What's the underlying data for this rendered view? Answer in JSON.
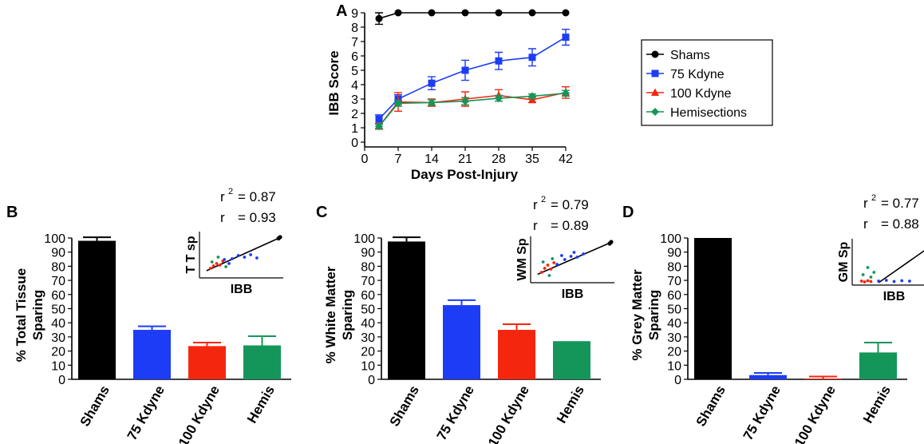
{
  "colors": {
    "shams": "#000000",
    "k75": "#1c3cf5",
    "k100": "#f5260e",
    "hemi": "#14965a"
  },
  "legend": {
    "entries": [
      {
        "label": "Shams",
        "marker": "circle",
        "color": "#000000"
      },
      {
        "label": "75 Kdyne",
        "marker": "square",
        "color": "#1c3cf5"
      },
      {
        "label": "100 Kdyne",
        "marker": "triangle",
        "color": "#f5260e"
      },
      {
        "label": "Hemisections",
        "marker": "diamond",
        "color": "#14965a"
      }
    ]
  },
  "chart_data": [
    {
      "id": "A",
      "panel_label": "A",
      "type": "line",
      "title": "",
      "xlabel": "Days Post-Injury",
      "ylabel": "IBB Score",
      "x": [
        3,
        7,
        14,
        21,
        28,
        35,
        42
      ],
      "x_ticks": [
        "0",
        "7",
        "14",
        "21",
        "28",
        "35",
        "42"
      ],
      "xlim": [
        0,
        42
      ],
      "ylim": [
        0,
        9
      ],
      "y_ticks": [
        "0",
        "1",
        "2",
        "3",
        "4",
        "5",
        "6",
        "7",
        "8",
        "9"
      ],
      "series": [
        {
          "name": "Shams",
          "color": "#000000",
          "marker": "circle",
          "values": [
            8.6,
            9,
            9,
            9,
            9,
            9,
            9
          ],
          "errors": [
            0.4,
            0,
            0,
            0,
            0,
            0,
            0
          ]
        },
        {
          "name": "75 Kdyne",
          "color": "#1c3cf5",
          "marker": "square",
          "values": [
            1.6,
            3.0,
            4.1,
            5.0,
            5.65,
            5.9,
            7.3
          ],
          "errors": [
            0.3,
            0.3,
            0.45,
            0.7,
            0.6,
            0.6,
            0.55
          ]
        },
        {
          "name": "100 Kdyne",
          "color": "#f5260e",
          "marker": "triangle",
          "values": [
            1.1,
            2.8,
            2.75,
            3.0,
            3.25,
            2.95,
            3.45
          ],
          "errors": [
            0.2,
            0.65,
            0.25,
            0.5,
            0.4,
            0.2,
            0.4
          ]
        },
        {
          "name": "Hemisections",
          "color": "#14965a",
          "marker": "diamond",
          "values": [
            1.1,
            2.7,
            2.75,
            2.85,
            3.05,
            3.2,
            3.4
          ],
          "errors": [
            0.15,
            0.2,
            0.2,
            0.25,
            0.2,
            0.15,
            0.2
          ]
        }
      ]
    },
    {
      "id": "B",
      "panel_label": "B",
      "type": "bar",
      "title": "",
      "xlabel": "",
      "ylabel": "% Total Tissue Sparing",
      "ylabel_lines": [
        "% Total Tissue",
        "Sparing"
      ],
      "categories": [
        "Shams",
        "75 Kdyne",
        "100 Kdyne",
        "Hemis"
      ],
      "values": [
        98,
        35,
        23.5,
        24
      ],
      "errors": [
        2.5,
        2.5,
        2.5,
        6.5
      ],
      "colors": [
        "#000000",
        "#1c3cf5",
        "#f5260e",
        "#14965a"
      ],
      "ylim": [
        0,
        100
      ],
      "y_ticks": [
        "0",
        "10",
        "20",
        "30",
        "40",
        "50",
        "60",
        "70",
        "80",
        "90",
        "100"
      ],
      "inset": {
        "type": "scatter",
        "ylabel": "T T sp",
        "xlabel": "IBB",
        "r2_label": "r",
        "r2_sup": "2",
        "r2_value": "= 0.87",
        "r_label": "r",
        "r_value": "= 0.93",
        "fit": [
          [
            0.05,
            0.12
          ],
          [
            1.0,
            0.95
          ]
        ],
        "points": [
          {
            "x": 0.1,
            "y": 0.18,
            "c": "#f5260e"
          },
          {
            "x": 0.14,
            "y": 0.24,
            "c": "#f5260e"
          },
          {
            "x": 0.18,
            "y": 0.3,
            "c": "#f5260e"
          },
          {
            "x": 0.22,
            "y": 0.26,
            "c": "#f5260e"
          },
          {
            "x": 0.26,
            "y": 0.36,
            "c": "#f5260e"
          },
          {
            "x": 0.12,
            "y": 0.34,
            "c": "#14965a"
          },
          {
            "x": 0.2,
            "y": 0.46,
            "c": "#14965a"
          },
          {
            "x": 0.3,
            "y": 0.22,
            "c": "#14965a"
          },
          {
            "x": 0.28,
            "y": 0.4,
            "c": "#1c3cf5"
          },
          {
            "x": 0.38,
            "y": 0.42,
            "c": "#1c3cf5"
          },
          {
            "x": 0.46,
            "y": 0.5,
            "c": "#1c3cf5"
          },
          {
            "x": 0.54,
            "y": 0.46,
            "c": "#1c3cf5"
          },
          {
            "x": 0.62,
            "y": 0.52,
            "c": "#1c3cf5"
          },
          {
            "x": 0.7,
            "y": 0.44,
            "c": "#1c3cf5"
          },
          {
            "x": 0.34,
            "y": 0.3,
            "c": "#1c3cf5"
          },
          {
            "x": 1.0,
            "y": 0.96,
            "c": "#000000"
          },
          {
            "x": 0.98,
            "y": 0.93,
            "c": "#000000"
          }
        ]
      }
    },
    {
      "id": "C",
      "panel_label": "C",
      "type": "bar",
      "title": "",
      "xlabel": "",
      "ylabel": "% White Matter Sparing",
      "ylabel_lines": [
        "% White Matter",
        "Sparing"
      ],
      "categories": [
        "Shams",
        "75 Kdyne",
        "100 Kdyne",
        "Hemis"
      ],
      "values": [
        97.5,
        52.5,
        35,
        27
      ],
      "errors": [
        3,
        3.5,
        4,
        0
      ],
      "colors": [
        "#000000",
        "#1c3cf5",
        "#f5260e",
        "#14965a"
      ],
      "ylim": [
        0,
        100
      ],
      "y_ticks": [
        "0",
        "10",
        "20",
        "30",
        "40",
        "50",
        "60",
        "70",
        "80",
        "90",
        "100"
      ],
      "inset": {
        "type": "scatter",
        "ylabel": "WM Sp",
        "xlabel": "IBB",
        "r2_label": "r",
        "r2_sup": "2",
        "r2_value": "= 0.79",
        "r_label": "r",
        "r_value": "= 0.89",
        "fit": [
          [
            0.05,
            0.15
          ],
          [
            1.0,
            0.95
          ]
        ],
        "points": [
          {
            "x": 0.1,
            "y": 0.2,
            "c": "#f5260e"
          },
          {
            "x": 0.14,
            "y": 0.3,
            "c": "#f5260e"
          },
          {
            "x": 0.18,
            "y": 0.38,
            "c": "#f5260e"
          },
          {
            "x": 0.22,
            "y": 0.28,
            "c": "#f5260e"
          },
          {
            "x": 0.26,
            "y": 0.44,
            "c": "#f5260e"
          },
          {
            "x": 0.12,
            "y": 0.46,
            "c": "#14965a"
          },
          {
            "x": 0.2,
            "y": 0.12,
            "c": "#14965a"
          },
          {
            "x": 0.24,
            "y": 0.54,
            "c": "#14965a"
          },
          {
            "x": 0.3,
            "y": 0.4,
            "c": "#1c3cf5"
          },
          {
            "x": 0.4,
            "y": 0.52,
            "c": "#1c3cf5"
          },
          {
            "x": 0.48,
            "y": 0.6,
            "c": "#1c3cf5"
          },
          {
            "x": 0.56,
            "y": 0.58,
            "c": "#1c3cf5"
          },
          {
            "x": 0.64,
            "y": 0.66,
            "c": "#1c3cf5"
          },
          {
            "x": 0.36,
            "y": 0.62,
            "c": "#1c3cf5"
          },
          {
            "x": 0.52,
            "y": 0.7,
            "c": "#1c3cf5"
          },
          {
            "x": 1.0,
            "y": 0.96,
            "c": "#000000"
          },
          {
            "x": 0.98,
            "y": 0.92,
            "c": "#000000"
          }
        ]
      }
    },
    {
      "id": "D",
      "panel_label": "D",
      "type": "bar",
      "title": "",
      "xlabel": "",
      "ylabel": "% Grey Matter Sparing",
      "ylabel_lines": [
        "% Grey Matter",
        "Sparing"
      ],
      "categories": [
        "Shams",
        "75 Kdyne",
        "100 Kdyne",
        "Hemis"
      ],
      "values": [
        100,
        3,
        0.5,
        19
      ],
      "errors": [
        0,
        1.5,
        1.5,
        7
      ],
      "colors": [
        "#000000",
        "#1c3cf5",
        "#f5260e",
        "#14965a"
      ],
      "ylim": [
        0,
        100
      ],
      "y_ticks": [
        "0",
        "10",
        "20",
        "30",
        "40",
        "50",
        "60",
        "70",
        "80",
        "90",
        "100"
      ],
      "inset": {
        "type": "scatter",
        "ylabel": "GM Sp",
        "xlabel": "IBB",
        "r2_label": "r",
        "r2_sup": "2",
        "r2_value": "= 0.77",
        "r_label": "r",
        "r_value": "= 0.88",
        "fit": [
          [
            0.3,
            0.0
          ],
          [
            1.0,
            0.95
          ]
        ],
        "points": [
          {
            "x": 0.08,
            "y": 0.04,
            "c": "#f5260e"
          },
          {
            "x": 0.12,
            "y": 0.02,
            "c": "#f5260e"
          },
          {
            "x": 0.16,
            "y": 0.05,
            "c": "#f5260e"
          },
          {
            "x": 0.2,
            "y": 0.03,
            "c": "#f5260e"
          },
          {
            "x": 0.1,
            "y": 0.2,
            "c": "#14965a"
          },
          {
            "x": 0.16,
            "y": 0.38,
            "c": "#14965a"
          },
          {
            "x": 0.2,
            "y": 0.14,
            "c": "#14965a"
          },
          {
            "x": 0.24,
            "y": 0.26,
            "c": "#14965a"
          },
          {
            "x": 0.3,
            "y": 0.04,
            "c": "#1c3cf5"
          },
          {
            "x": 0.4,
            "y": 0.06,
            "c": "#1c3cf5"
          },
          {
            "x": 0.5,
            "y": 0.03,
            "c": "#1c3cf5"
          },
          {
            "x": 0.6,
            "y": 0.05,
            "c": "#1c3cf5"
          },
          {
            "x": 0.7,
            "y": 0.04,
            "c": "#1c3cf5"
          },
          {
            "x": 1.0,
            "y": 0.96,
            "c": "#000000"
          },
          {
            "x": 0.98,
            "y": 0.9,
            "c": "#000000"
          }
        ]
      }
    }
  ]
}
